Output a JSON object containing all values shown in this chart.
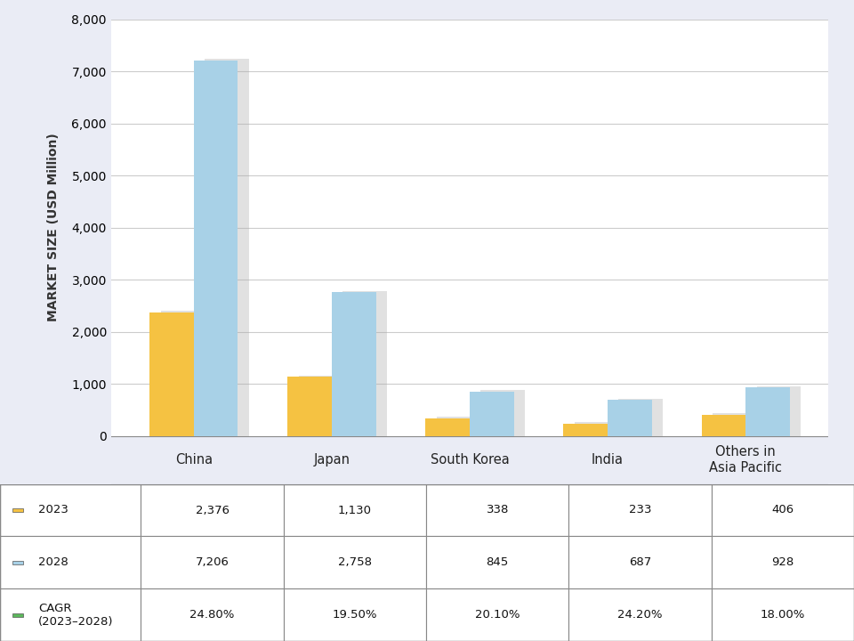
{
  "categories": [
    "China",
    "Japan",
    "South Korea",
    "India",
    "Others in\nAsia Pacific"
  ],
  "values_2023": [
    2376,
    1130,
    338,
    233,
    406
  ],
  "values_2028": [
    7206,
    2758,
    845,
    687,
    928
  ],
  "cagr": [
    "24.80%",
    "19.50%",
    "20.10%",
    "24.20%",
    "18.00%"
  ],
  "color_2023": "#F5C242",
  "color_2028": "#A8D1E7",
  "color_cagr": "#5CB85C",
  "ylabel": "MARKET SIZE (USD Million)",
  "ylim": [
    0,
    8000
  ],
  "yticks": [
    0,
    1000,
    2000,
    3000,
    4000,
    5000,
    6000,
    7000,
    8000
  ],
  "background_color": "#EAECF5",
  "plot_bg_color": "#FFFFFF",
  "bar_width": 0.32,
  "shadow_color": "#AAAAAA",
  "shadow_alpha": 0.35,
  "table_row1_label": "2023",
  "table_row2_label": "2028",
  "table_row3_label": "CAGR\n(2023–2028)",
  "row1_values": [
    "2,376",
    "1,130",
    "338",
    "233",
    "406"
  ],
  "row2_values": [
    "7,206",
    "2,758",
    "845",
    "687",
    "928"
  ],
  "row3_values": [
    "24.80%",
    "19.50%",
    "20.10%",
    "24.20%",
    "18.00%"
  ]
}
